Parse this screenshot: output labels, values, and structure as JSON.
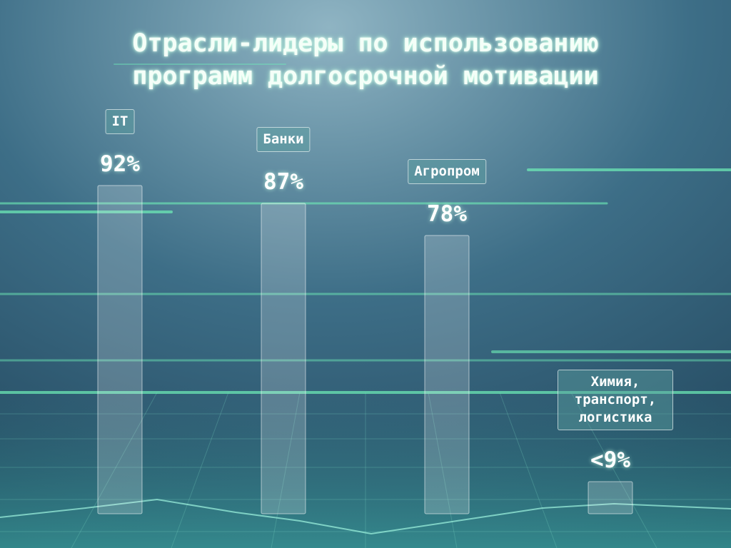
{
  "chart_data": {
    "type": "bar",
    "title": "Отрасли-лидеры по использованию программ долгосрочной мотивации",
    "categories": [
      "IT",
      "Банки",
      "Агропром",
      "Химия, транспорт, логистика"
    ],
    "values": [
      92,
      87,
      78,
      9
    ],
    "value_labels": [
      "92%",
      "87%",
      "78%",
      "<9%"
    ],
    "color": "rgba(255,255,255,0.2)",
    "ylim": [
      0,
      100
    ]
  }
}
